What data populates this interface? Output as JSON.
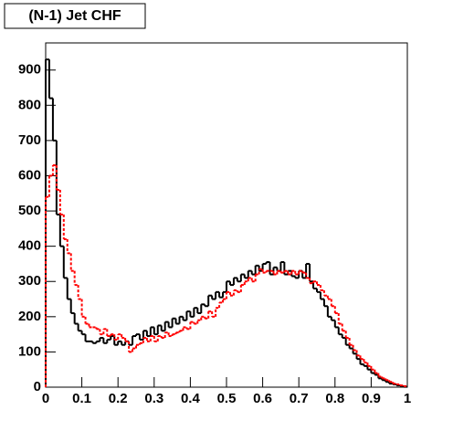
{
  "chart_data": {
    "type": "histogram",
    "title": "(N-1) Jet CHF",
    "bins": [
      0,
      0.01,
      0.02,
      0.03,
      0.04,
      0.05,
      0.06,
      0.07,
      0.08,
      0.09,
      0.1,
      0.11,
      0.12,
      0.13,
      0.14,
      0.15,
      0.16,
      0.17,
      0.18,
      0.19,
      0.2,
      0.21,
      0.22,
      0.23,
      0.24,
      0.25,
      0.26,
      0.27,
      0.28,
      0.29,
      0.3,
      0.31,
      0.32,
      0.33,
      0.34,
      0.35,
      0.36,
      0.37,
      0.38,
      0.39,
      0.4,
      0.41,
      0.42,
      0.43,
      0.44,
      0.45,
      0.46,
      0.47,
      0.48,
      0.49,
      0.5,
      0.51,
      0.52,
      0.53,
      0.54,
      0.55,
      0.56,
      0.57,
      0.58,
      0.59,
      0.6,
      0.61,
      0.62,
      0.63,
      0.64,
      0.65,
      0.66,
      0.67,
      0.68,
      0.69,
      0.7,
      0.71,
      0.72,
      0.73,
      0.74,
      0.75,
      0.76,
      0.77,
      0.78,
      0.79,
      0.8,
      0.81,
      0.82,
      0.83,
      0.84,
      0.85,
      0.86,
      0.87,
      0.88,
      0.89,
      0.9,
      0.91,
      0.92,
      0.93,
      0.94,
      0.95,
      0.96,
      0.97,
      0.98,
      0.99,
      1
    ],
    "series": [
      {
        "color": "#000000",
        "dashed": false,
        "values": [
          930,
          820,
          700,
          490,
          400,
          310,
          250,
          210,
          180,
          160,
          150,
          130,
          130,
          125,
          130,
          140,
          125,
          135,
          145,
          120,
          130,
          120,
          130,
          120,
          145,
          150,
          135,
          160,
          145,
          170,
          150,
          175,
          160,
          185,
          170,
          195,
          180,
          200,
          190,
          215,
          200,
          225,
          210,
          235,
          230,
          260,
          250,
          270,
          255,
          270,
          300,
          290,
          310,
          300,
          320,
          310,
          330,
          320,
          345,
          330,
          350,
          355,
          320,
          340,
          330,
          355,
          320,
          330,
          315,
          310,
          330,
          310,
          350,
          300,
          280,
          270,
          250,
          230,
          200,
          190,
          170,
          150,
          140,
          120,
          110,
          95,
          80,
          65,
          60,
          50,
          40,
          35,
          25,
          20,
          15,
          10,
          8,
          5,
          3,
          1
        ]
      },
      {
        "color": "#ff0000",
        "dashed": true,
        "values": [
          540,
          600,
          630,
          560,
          490,
          420,
          380,
          330,
          290,
          250,
          200,
          180,
          170,
          170,
          165,
          150,
          165,
          145,
          150,
          135,
          150,
          140,
          130,
          100,
          110,
          120,
          125,
          140,
          130,
          145,
          130,
          145,
          140,
          155,
          145,
          150,
          155,
          160,
          170,
          165,
          185,
          180,
          190,
          200,
          195,
          215,
          200,
          225,
          240,
          250,
          270,
          260,
          275,
          270,
          290,
          300,
          310,
          300,
          320,
          335,
          325,
          330,
          330,
          320,
          330,
          325,
          330,
          320,
          330,
          320,
          330,
          325,
          310,
          295,
          300,
          290,
          275,
          260,
          250,
          230,
          210,
          180,
          160,
          140,
          120,
          105,
          90,
          80,
          70,
          60,
          50,
          40,
          30,
          25,
          20,
          15,
          10,
          8,
          5,
          3
        ]
      }
    ],
    "xlim": [
      0,
      1
    ],
    "xticks": [
      0,
      0.1,
      0.2,
      0.3,
      0.4,
      0.5,
      0.6,
      0.7,
      0.8,
      0.9,
      1
    ],
    "ylim": [
      0,
      977
    ],
    "yticks": [
      0,
      100,
      200,
      300,
      400,
      500,
      600,
      700,
      800,
      900
    ]
  }
}
